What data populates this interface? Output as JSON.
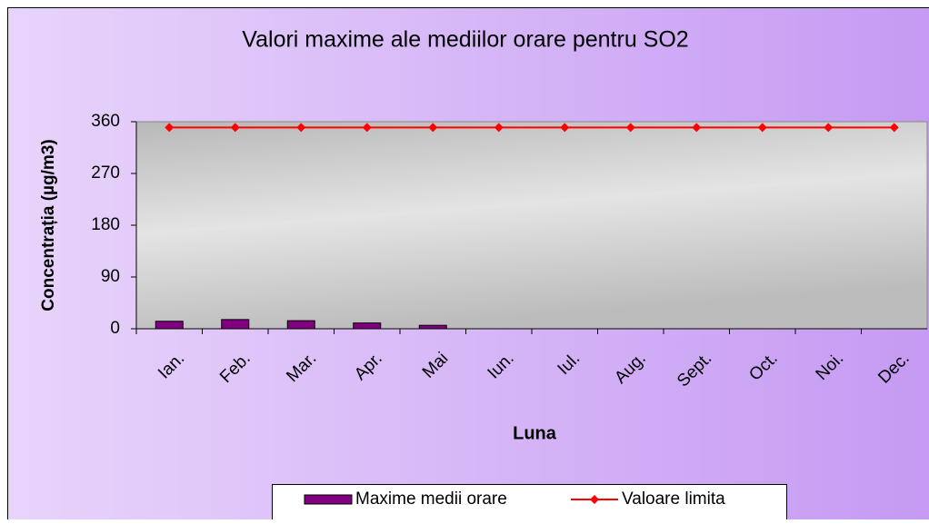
{
  "chart_data": {
    "type": "bar-line",
    "title": "Valori maxime ale mediilor orare pentru SO2",
    "x_label": "Luna",
    "y_label": "Concentrația (µg/m3)",
    "categories": [
      "Ian.",
      "Feb.",
      "Mar.",
      "Apr.",
      "Mai",
      "Iun.",
      "Iul.",
      "Aug.",
      "Sept.",
      "Oct.",
      "Noi.",
      "Dec."
    ],
    "series": [
      {
        "name": "Maxime medii orare",
        "type": "bar",
        "color": "#800080",
        "values": [
          13,
          16,
          14,
          10,
          6,
          null,
          null,
          null,
          null,
          null,
          null,
          null
        ]
      },
      {
        "name": "Valoare limita",
        "type": "line",
        "color": "#ff0000",
        "values": [
          350,
          350,
          350,
          350,
          350,
          350,
          350,
          350,
          350,
          350,
          350,
          350
        ]
      }
    ],
    "ylim": [
      0,
      360
    ],
    "yticks": [
      0,
      90,
      180,
      270,
      360
    ]
  }
}
